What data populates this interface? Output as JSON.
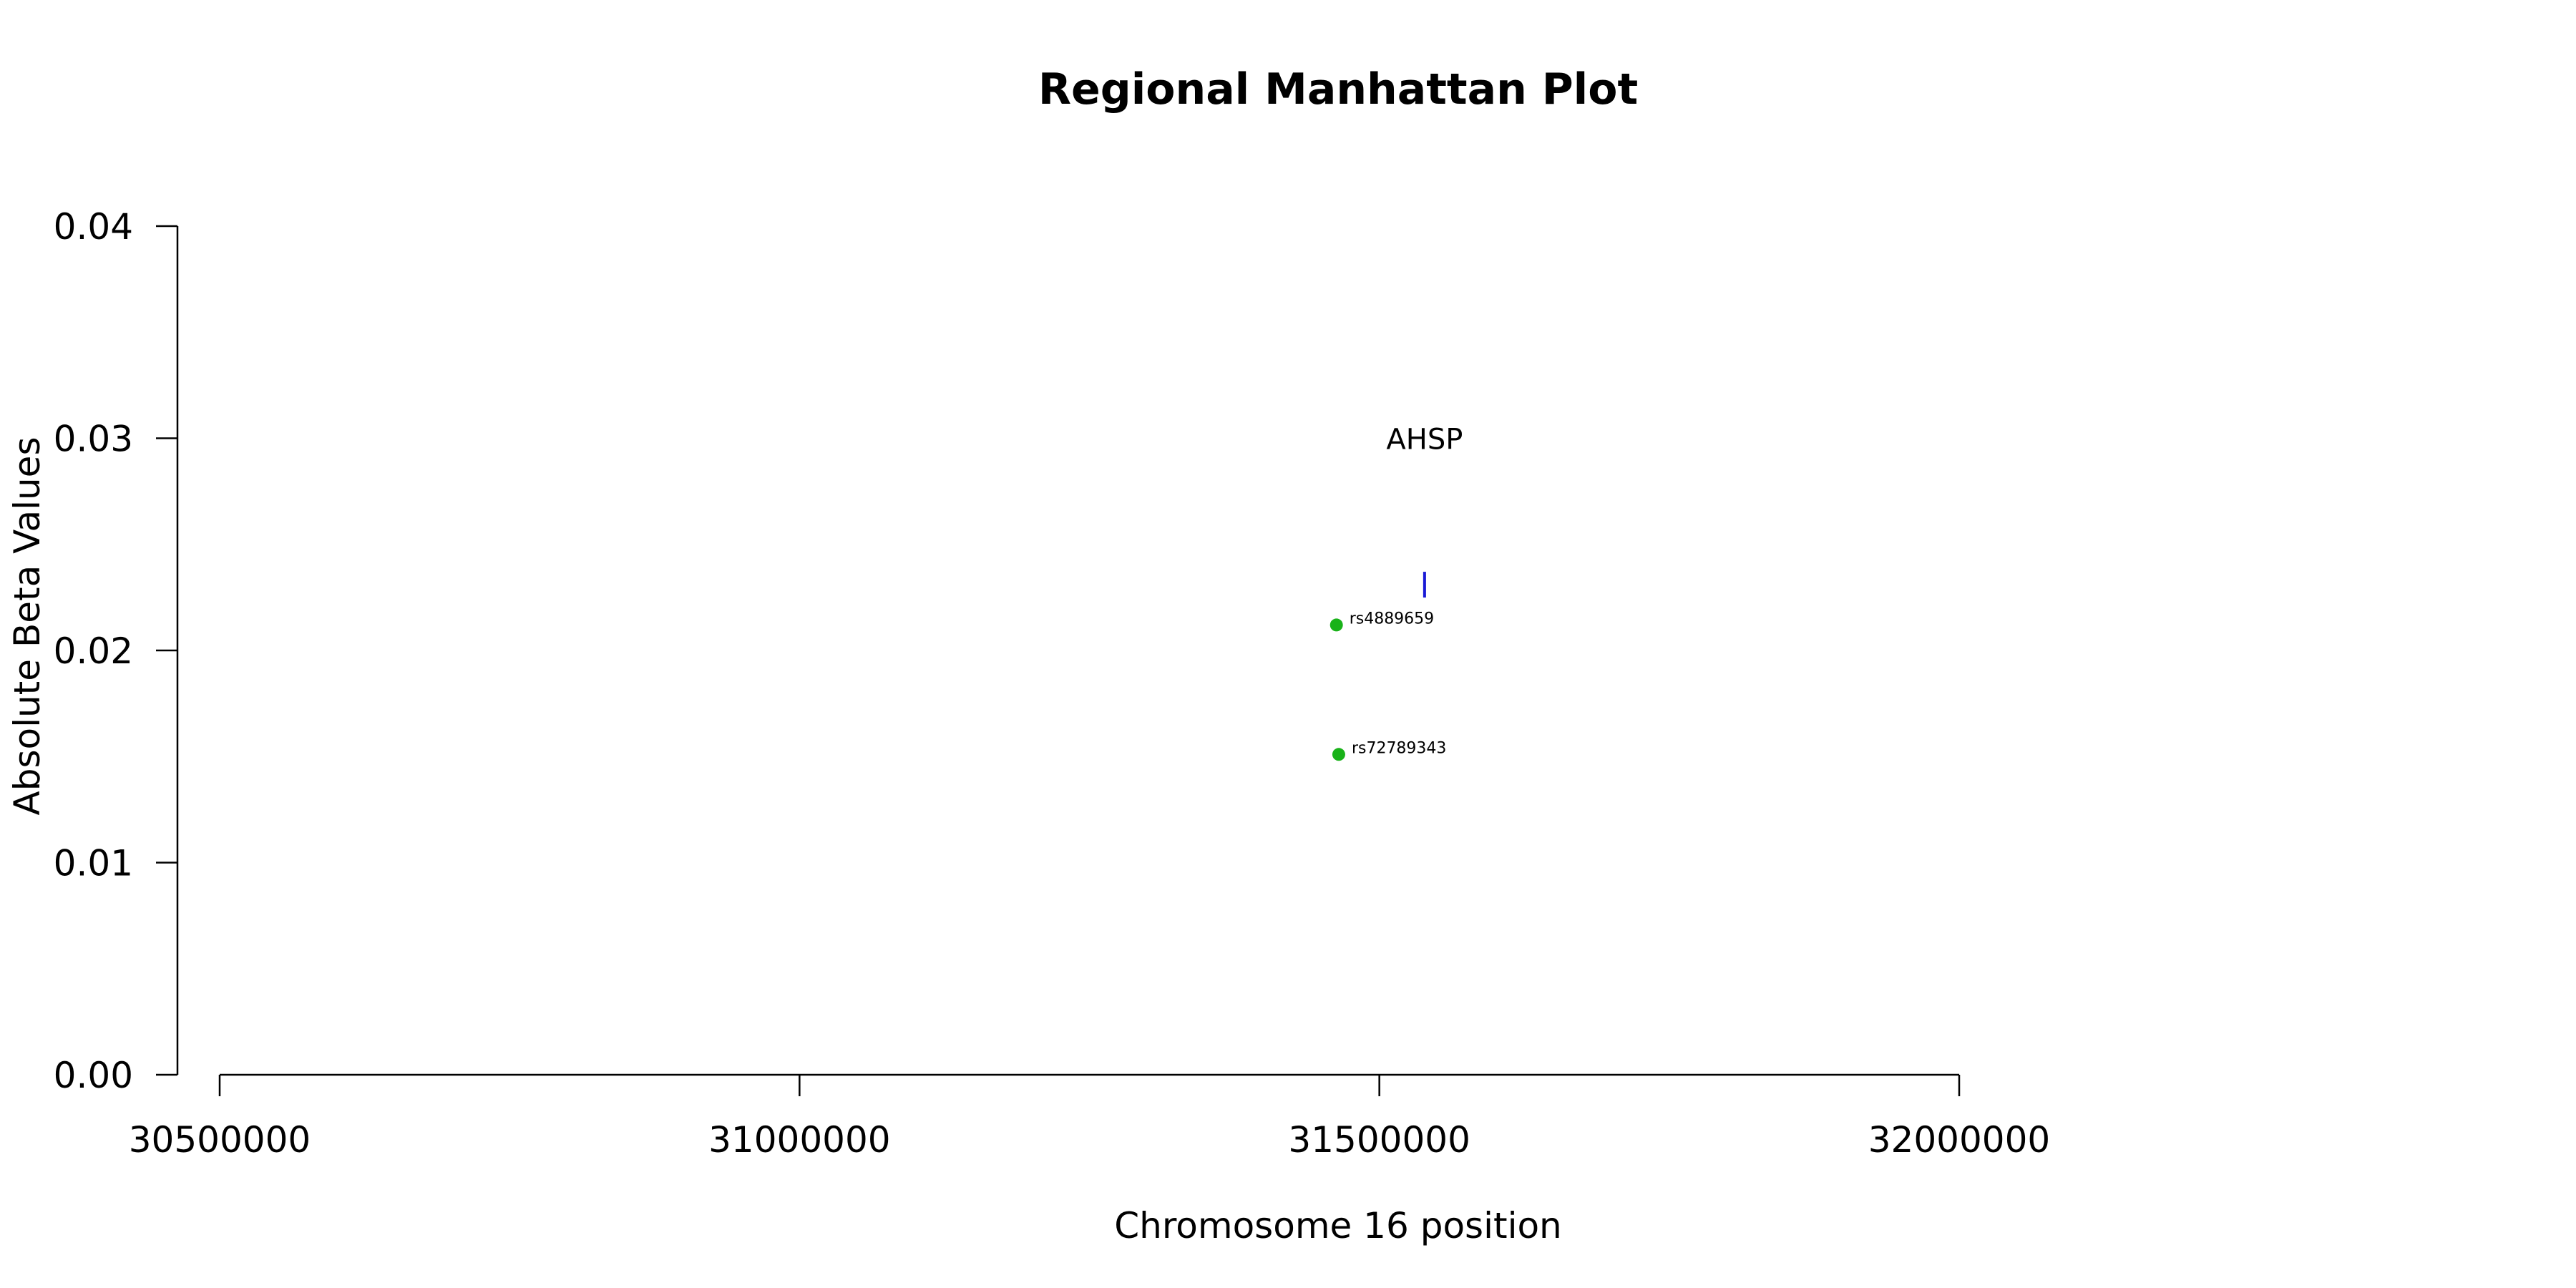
{
  "chart_data": {
    "type": "scatter",
    "title": "Regional Manhattan Plot",
    "xlabel": "Chromosome 16 position",
    "ylabel": "Absolute Beta Values",
    "xlim": [
      30500000,
      32000000
    ],
    "ylim": [
      0,
      0.04
    ],
    "x_ticks": [
      30500000,
      31000000,
      31500000,
      32000000
    ],
    "x_tick_labels": [
      "30500000",
      "31000000",
      "31500000",
      "32000000"
    ],
    "y_ticks": [
      0,
      0.01,
      0.02,
      0.03,
      0.04
    ],
    "y_tick_labels": [
      "0.00",
      "0.01",
      "0.02",
      "0.03",
      "0.04"
    ],
    "grid": false,
    "points": [
      {
        "label": "rs4889659",
        "x": 31463000,
        "y": 0.0212,
        "color": "#19b219"
      },
      {
        "label": "rs72789343",
        "x": 31465000,
        "y": 0.0151,
        "color": "#19b219"
      }
    ],
    "genes": [
      {
        "name": "AHSP",
        "x": 31539000,
        "y": 0.0231,
        "label_y": 0.03,
        "color": "#1a1ad6"
      }
    ]
  }
}
